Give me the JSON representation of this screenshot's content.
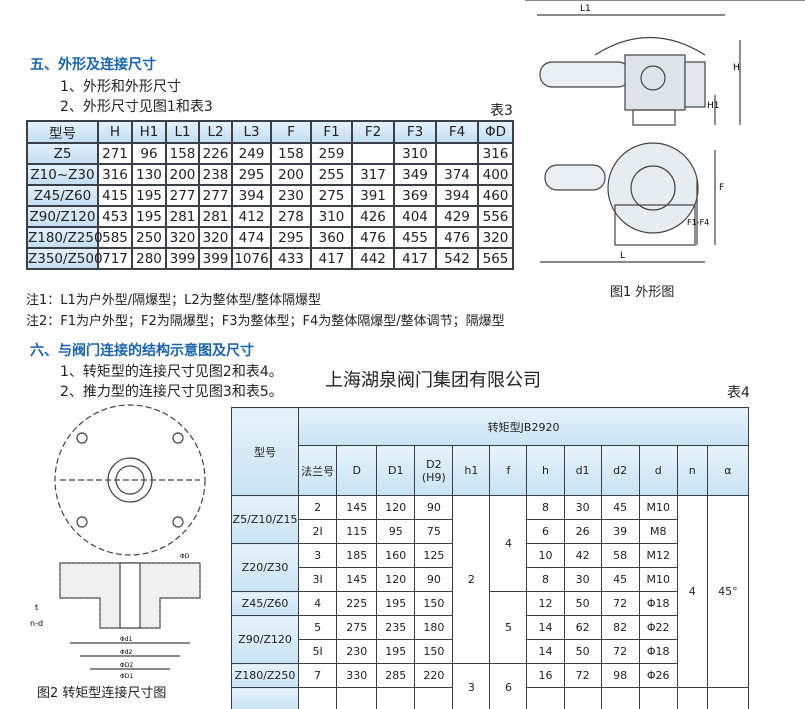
{
  "section5": {
    "title": "五、外形及连接尺寸",
    "item1": "1、外形和外形尺寸",
    "item2": "2、外形尺寸见图1和表3",
    "table_label": "表3"
  },
  "table3": {
    "headers": [
      "型号",
      "H",
      "H1",
      "L1",
      "L2",
      "L3",
      "F",
      "F1",
      "F2",
      "F3",
      "F4",
      "ΦD"
    ],
    "rows": [
      [
        "Z5",
        "271",
        "96",
        "158",
        "226",
        "249",
        "158",
        "259",
        "",
        "310",
        "",
        "316"
      ],
      [
        "Z10~Z30",
        "316",
        "130",
        "200",
        "238",
        "295",
        "200",
        "255",
        "317",
        "349",
        "374",
        "400"
      ],
      [
        "Z45/Z60",
        "415",
        "195",
        "277",
        "277",
        "394",
        "230",
        "275",
        "391",
        "369",
        "394",
        "460"
      ],
      [
        "Z90/Z120",
        "453",
        "195",
        "281",
        "281",
        "412",
        "278",
        "310",
        "426",
        "404",
        "429",
        "556"
      ],
      [
        "Z180/Z250",
        "585",
        "250",
        "320",
        "320",
        "474",
        "295",
        "360",
        "476",
        "455",
        "476",
        "320"
      ],
      [
        "Z350/Z500",
        "717",
        "280",
        "399",
        "399",
        "1076",
        "433",
        "417",
        "442",
        "417",
        "542",
        "565"
      ]
    ]
  },
  "notes": [
    "注1：L1为户外型/隔爆型；L2为整体型/整体隔爆型",
    "注2：F1为户外型；F2为隔爆型；F3为整体型；F4为整体隔爆型/整体调节；隔爆型"
  ],
  "fig1": {
    "caption": "图1 外形图",
    "labels": [
      "L1",
      "H",
      "H1",
      "F",
      "F1-F4",
      "L"
    ]
  },
  "section6": {
    "title": "六、与阀门连接的结构示意图及尺寸",
    "item1": "1、转矩型的连接尺寸见图2和表4。",
    "item2": "2、推力型的连接尺寸见图3和表5。",
    "table_label": "表4"
  },
  "company": "上海湖泉阀门集团有限公司",
  "fig2": {
    "caption": "图2  转矩型连接尺寸图",
    "labels": [
      "n-d",
      "t",
      "Φd1",
      "Φd2",
      "ΦD2",
      "ΦD1",
      "ΦD"
    ]
  },
  "table4": {
    "group_header": "转矩型JB2920",
    "model_header": "型号",
    "headers": [
      "法兰号",
      "D",
      "D1",
      "D2\n(H9)",
      "h1",
      "f",
      "h",
      "d1",
      "d2",
      "d",
      "n",
      "α"
    ],
    "models": [
      {
        "name": "Z5/Z10/Z15",
        "span": 2
      },
      {
        "name": "Z20/Z30",
        "span": 2
      },
      {
        "name": "Z45/Z60",
        "span": 1
      },
      {
        "name": "Z90/Z120",
        "span": 2
      },
      {
        "name": "Z180/Z250",
        "span": 1
      },
      {
        "name": "",
        "span": 1
      }
    ],
    "rows": [
      [
        "2",
        "145",
        "120",
        "90",
        "8",
        "30",
        "45",
        "M10"
      ],
      [
        "2I",
        "115",
        "95",
        "75",
        "6",
        "26",
        "39",
        "M8"
      ],
      [
        "3",
        "185",
        "160",
        "125",
        "10",
        "42",
        "58",
        "M12"
      ],
      [
        "3I",
        "145",
        "120",
        "90",
        "8",
        "30",
        "45",
        "M10"
      ],
      [
        "4",
        "225",
        "195",
        "150",
        "12",
        "50",
        "72",
        "Φ18"
      ],
      [
        "5",
        "275",
        "235",
        "180",
        "14",
        "62",
        "82",
        "Φ22"
      ],
      [
        "5I",
        "230",
        "195",
        "150",
        "14",
        "50",
        "72",
        "Φ18"
      ],
      [
        "7",
        "330",
        "285",
        "220",
        "16",
        "72",
        "98",
        "Φ26"
      ],
      [
        "",
        "",
        "",
        "",
        "",
        "",
        "",
        ""
      ]
    ],
    "h1": [
      {
        "v": "2",
        "span": 7
      },
      {
        "v": "3",
        "span": 2
      }
    ],
    "f": [
      {
        "v": "4",
        "span": 4
      },
      {
        "v": "5",
        "span": 3
      },
      {
        "v": "6",
        "span": 2
      }
    ],
    "n": [
      {
        "v": "4",
        "span": 8
      },
      {
        "v": "",
        "span": 1
      }
    ],
    "alpha": [
      {
        "v": "45°",
        "span": 8
      },
      {
        "v": "",
        "span": 1
      }
    ]
  }
}
